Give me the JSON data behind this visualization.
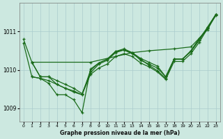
{
  "background_color": "#cce8e0",
  "grid_color": "#aacccc",
  "line_color": "#1a6b1a",
  "xlabel": "Graphe pression niveau de la mer (hPa)",
  "ylim": [
    1008.65,
    1011.75
  ],
  "xlim": [
    -0.5,
    23.5
  ],
  "yticks": [
    1009,
    1010,
    1011
  ],
  "xticks": [
    0,
    1,
    2,
    3,
    4,
    5,
    6,
    7,
    8,
    9,
    10,
    11,
    12,
    13,
    14,
    15,
    16,
    17,
    18,
    19,
    20,
    21,
    22,
    23
  ],
  "series": [
    {
      "y": [
        null,
        1010.2,
        null,
        null,
        null,
        null,
        null,
        null,
        null,
        null,
        null,
        null,
        null,
        null,
        null,
        null,
        null,
        null,
        null,
        null,
        null,
        null,
        null,
        null
      ],
      "flat": true,
      "pts": [
        [
          1,
          1010.2
        ],
        [
          8,
          1010.2
        ],
        [
          11,
          1010.35
        ],
        [
          13,
          1010.45
        ],
        [
          15,
          1010.5
        ],
        [
          18,
          1010.55
        ],
        [
          20,
          1010.6
        ],
        [
          22,
          1011.05
        ],
        [
          23,
          1011.45
        ]
      ]
    },
    {
      "pts": [
        [
          0,
          1010.8
        ],
        [
          1,
          1010.2
        ],
        [
          2,
          1009.82
        ],
        [
          3,
          1009.82
        ],
        [
          4,
          1009.62
        ],
        [
          5,
          1009.52
        ],
        [
          6,
          1009.45
        ],
        [
          7,
          1009.35
        ],
        [
          8,
          1009.98
        ],
        [
          9,
          1010.18
        ],
        [
          10,
          1010.28
        ],
        [
          11,
          1010.48
        ],
        [
          12,
          1010.55
        ],
        [
          13,
          1010.45
        ],
        [
          14,
          1010.25
        ],
        [
          15,
          1010.15
        ],
        [
          16,
          1010.05
        ],
        [
          17,
          1009.82
        ],
        [
          18,
          1010.28
        ],
        [
          19,
          1010.28
        ],
        [
          20,
          1010.48
        ],
        [
          21,
          1010.78
        ],
        [
          22,
          1011.1
        ],
        [
          23,
          1011.45
        ]
      ]
    },
    {
      "pts": [
        [
          0,
          1010.7
        ],
        [
          1,
          1009.82
        ],
        [
          2,
          1009.78
        ],
        [
          3,
          1009.65
        ],
        [
          4,
          1009.35
        ],
        [
          5,
          1009.35
        ],
        [
          6,
          1009.22
        ],
        [
          7,
          1008.88
        ],
        [
          8,
          1010.02
        ],
        [
          9,
          1010.18
        ],
        [
          10,
          1010.28
        ],
        [
          11,
          1010.48
        ],
        [
          12,
          1010.52
        ],
        [
          13,
          1010.42
        ],
        [
          14,
          1010.28
        ],
        [
          15,
          1010.12
        ],
        [
          16,
          1009.98
        ],
        [
          17,
          1009.78
        ],
        [
          18,
          1010.28
        ],
        [
          19,
          1010.28
        ],
        [
          20,
          1010.48
        ],
        [
          21,
          1010.78
        ],
        [
          22,
          1011.12
        ],
        [
          23,
          1011.45
        ]
      ]
    },
    {
      "pts": [
        [
          1,
          1009.82
        ],
        [
          2,
          1009.78
        ],
        [
          3,
          1009.72
        ],
        [
          4,
          1009.62
        ],
        [
          5,
          1009.52
        ],
        [
          6,
          1009.42
        ],
        [
          7,
          1009.35
        ],
        [
          8,
          1009.88
        ],
        [
          9,
          1010.05
        ],
        [
          10,
          1010.15
        ],
        [
          11,
          1010.35
        ],
        [
          12,
          1010.42
        ],
        [
          13,
          1010.35
        ],
        [
          14,
          1010.18
        ],
        [
          15,
          1010.08
        ],
        [
          16,
          1009.95
        ],
        [
          17,
          1009.75
        ],
        [
          18,
          1010.22
        ],
        [
          19,
          1010.22
        ],
        [
          20,
          1010.42
        ],
        [
          21,
          1010.72
        ],
        [
          22,
          1011.08
        ],
        [
          23,
          1011.42
        ]
      ]
    },
    {
      "pts": [
        [
          1,
          1010.2
        ],
        [
          2,
          1009.82
        ],
        [
          3,
          1009.82
        ],
        [
          4,
          1009.72
        ],
        [
          5,
          1009.62
        ],
        [
          6,
          1009.52
        ],
        [
          7,
          1009.38
        ],
        [
          8,
          1009.92
        ],
        [
          9,
          1010.15
        ],
        [
          10,
          1010.25
        ],
        [
          11,
          1010.45
        ],
        [
          12,
          1010.52
        ],
        [
          13,
          1010.45
        ],
        [
          14,
          1010.3
        ],
        [
          15,
          1010.2
        ],
        [
          16,
          1010.1
        ],
        [
          17,
          1009.82
        ],
        [
          18,
          1010.28
        ],
        [
          19,
          1010.28
        ],
        [
          20,
          1010.5
        ],
        [
          21,
          1010.82
        ],
        [
          22,
          1011.1
        ],
        [
          23,
          1011.45
        ]
      ]
    }
  ]
}
